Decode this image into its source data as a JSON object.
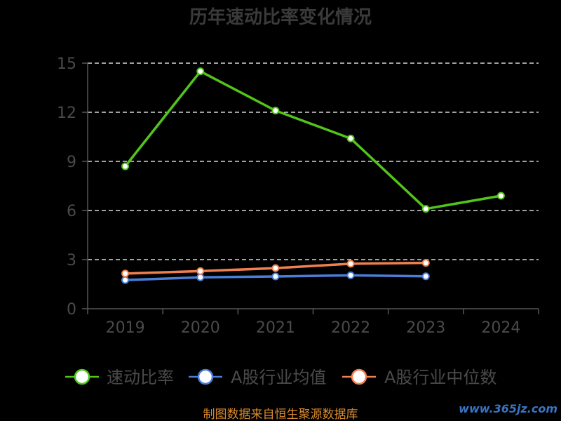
{
  "chart_data": {
    "type": "line",
    "title": "历年速动比率变化情况",
    "categories": [
      "2019",
      "2020",
      "2021",
      "2022",
      "2023",
      "2024"
    ],
    "yticks": [
      0,
      3,
      6,
      9,
      12,
      15
    ],
    "ylim": [
      0,
      15
    ],
    "grid": true,
    "legend_position": "bottom",
    "series": [
      {
        "name": "速动比率",
        "color": "#52c41a",
        "values": [
          8.7,
          14.5,
          12.1,
          10.4,
          6.1,
          6.9
        ]
      },
      {
        "name": "A股行业均值",
        "color": "#4a7fd8",
        "values": [
          1.75,
          1.92,
          1.97,
          2.04,
          1.98,
          null
        ]
      },
      {
        "name": "A股行业中位数",
        "color": "#f08050",
        "values": [
          2.15,
          2.3,
          2.48,
          2.75,
          2.8,
          null
        ]
      }
    ]
  },
  "footer": {
    "source": "制图数据来自恒生聚源数据库",
    "watermark": "www.365jz.com"
  }
}
